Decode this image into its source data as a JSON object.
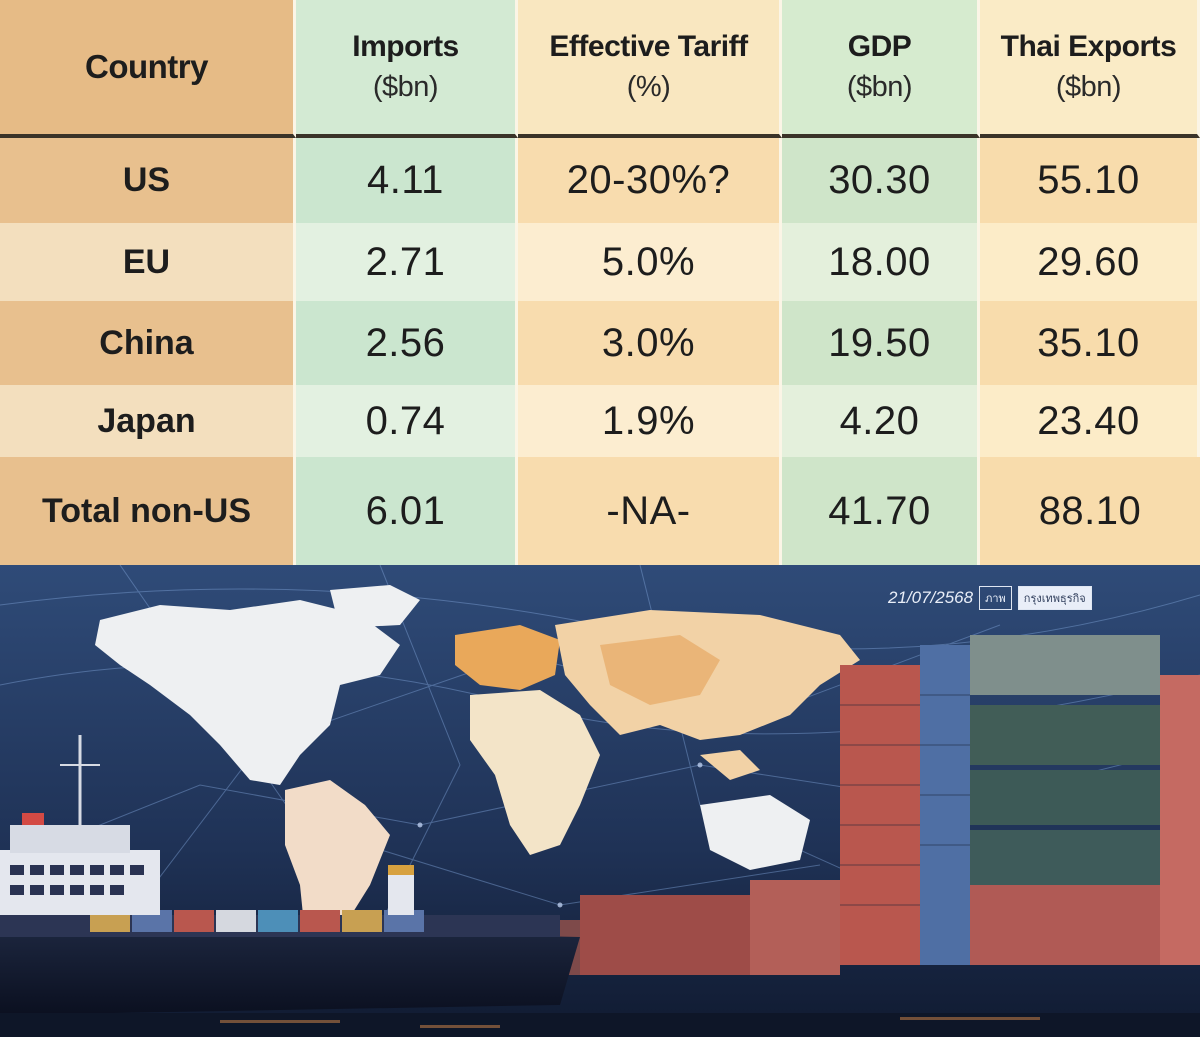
{
  "table": {
    "headers": [
      {
        "title": "Country",
        "unit": ""
      },
      {
        "title": "Imports",
        "unit": "($bn)"
      },
      {
        "title": "Effective Tariff",
        "unit": "(%)"
      },
      {
        "title": "GDP",
        "unit": "($bn)"
      },
      {
        "title": "Thai Exports",
        "unit": "($bn)"
      }
    ],
    "rows": [
      {
        "country": "US",
        "imports": "4.11",
        "tariff": "20-30%?",
        "gdp": "30.30",
        "thai_exports": "55.10"
      },
      {
        "country": "EU",
        "imports": "2.71",
        "tariff": "5.0%",
        "gdp": "18.00",
        "thai_exports": "29.60"
      },
      {
        "country": "China",
        "imports": "2.56",
        "tariff": "3.0%",
        "gdp": "19.50",
        "thai_exports": "35.10"
      },
      {
        "country": "Japan",
        "imports": "0.74",
        "tariff": "1.9%",
        "gdp": "4.20",
        "thai_exports": "23.40"
      },
      {
        "country": "Total non-US",
        "imports": "6.01",
        "tariff": "-NA-",
        "gdp": "41.70",
        "thai_exports": "88.10"
      }
    ]
  },
  "illustration": {
    "date_stamp": "21/07/2568",
    "tag_source": "ภาพ",
    "tag_publisher": "กรุงเทพธุรกิจ"
  }
}
